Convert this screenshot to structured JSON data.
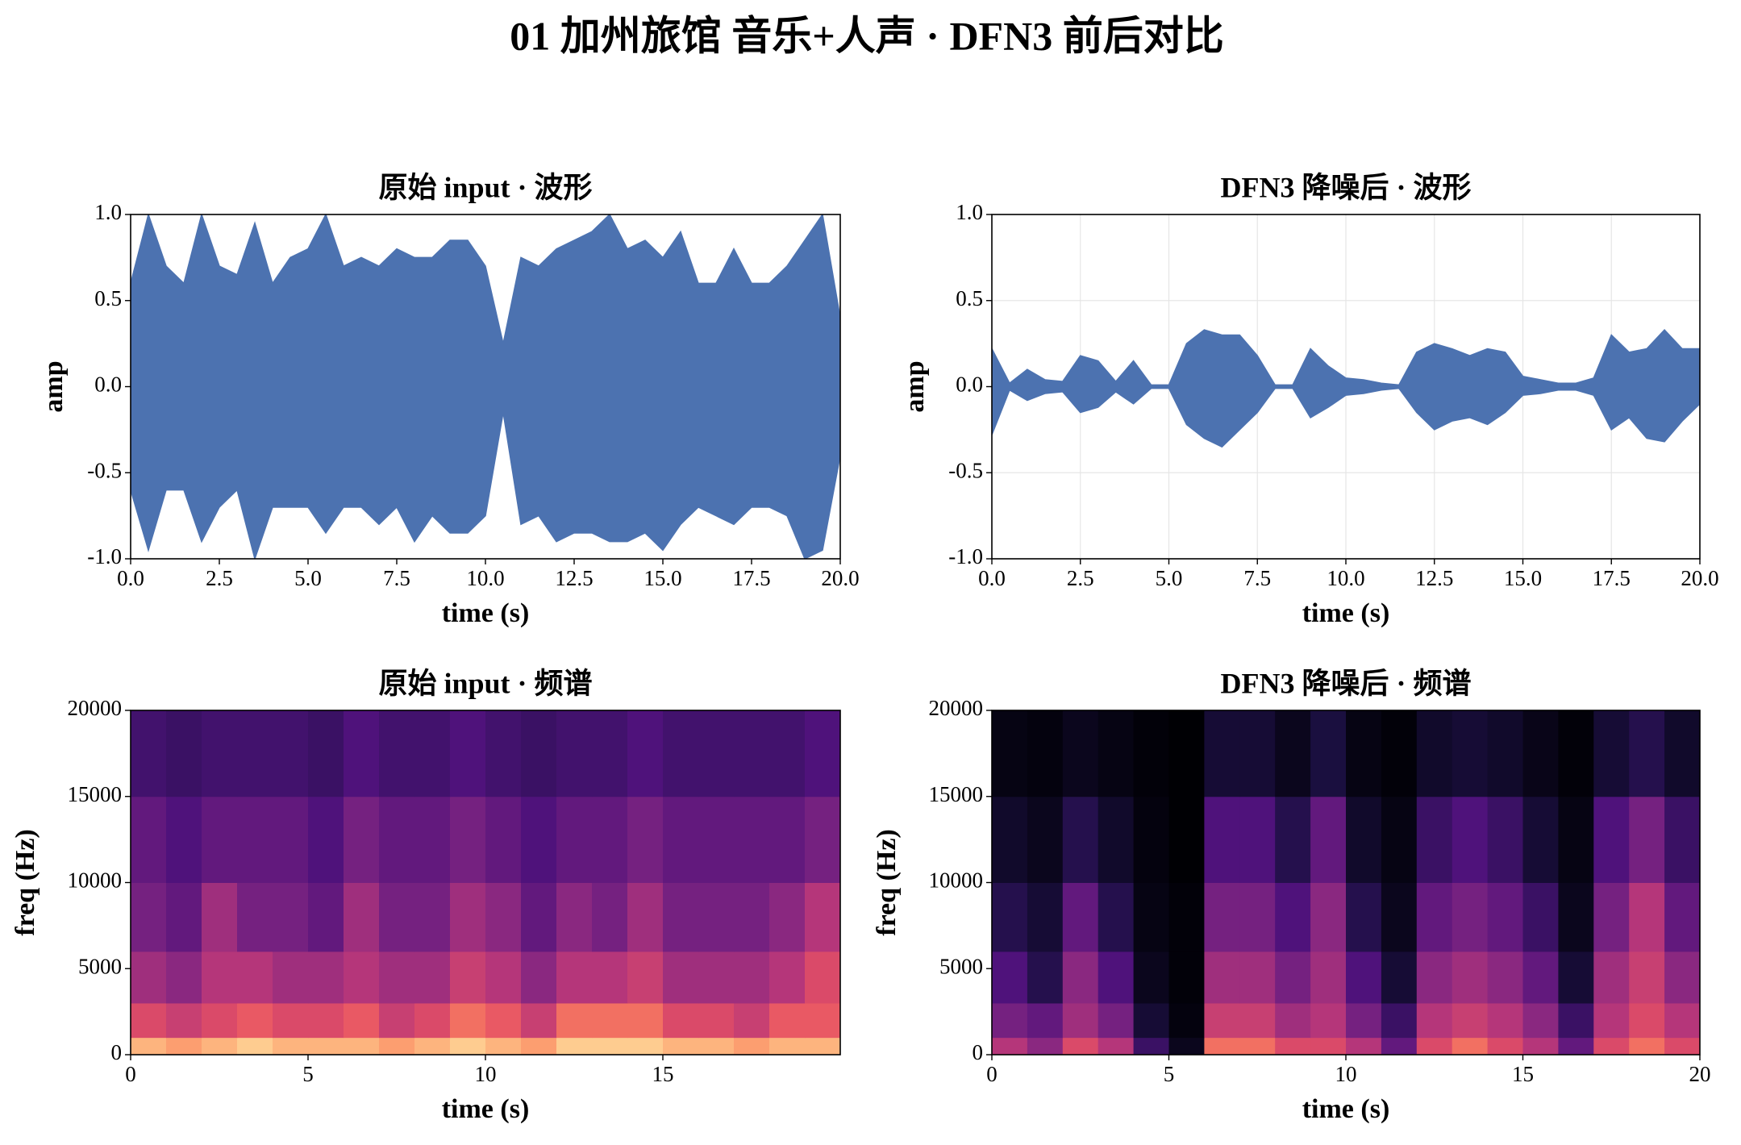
{
  "title": "01 加州旅馆 音乐+人声 · DFN3 前后对比",
  "chart_data": [
    {
      "type": "waveform",
      "title": "原始 input · 波形",
      "xlabel": "time (s)",
      "ylabel": "amp",
      "color": "#4c72b0",
      "grid": false,
      "xlim": [
        0,
        20
      ],
      "ylim": [
        -1,
        1
      ],
      "xticks": [
        {
          "value": 0,
          "label": "0.0"
        },
        2.5,
        {
          "value": 5,
          "label": "5.0"
        },
        7.5,
        {
          "value": 10,
          "label": "10.0"
        },
        12.5,
        {
          "value": 15,
          "label": "15.0"
        },
        17.5,
        {
          "value": 20,
          "label": "20.0"
        }
      ],
      "yticks": [
        {
          "value": -1,
          "label": "-1.0"
        },
        -0.5,
        {
          "value": 0,
          "label": "0.0"
        },
        0.5,
        {
          "value": 1,
          "label": "1.0"
        }
      ],
      "x": [
        0,
        0.5,
        1,
        1.5,
        2,
        2.5,
        3,
        3.5,
        4,
        4.5,
        5,
        5.5,
        6,
        6.5,
        7,
        7.5,
        8,
        8.5,
        9,
        9.5,
        10,
        10.5,
        11,
        11.5,
        12,
        12.5,
        13,
        13.5,
        14,
        14.5,
        15,
        15.5,
        16,
        16.5,
        17,
        17.5,
        18,
        18.5,
        19,
        19.5,
        20
      ],
      "upper": [
        0.6,
        1.0,
        0.7,
        0.6,
        1.0,
        0.7,
        0.65,
        0.95,
        0.6,
        0.75,
        0.8,
        1.0,
        0.7,
        0.75,
        0.7,
        0.8,
        0.75,
        0.75,
        0.85,
        0.85,
        0.7,
        0.25,
        0.75,
        0.7,
        0.8,
        0.85,
        0.9,
        1.0,
        0.8,
        0.85,
        0.75,
        0.9,
        0.6,
        0.6,
        0.8,
        0.6,
        0.6,
        0.7,
        0.85,
        1.0,
        0.4
      ],
      "lower": [
        -0.6,
        -0.95,
        -0.6,
        -0.6,
        -0.9,
        -0.7,
        -0.6,
        -1.0,
        -0.7,
        -0.7,
        -0.7,
        -0.85,
        -0.7,
        -0.7,
        -0.8,
        -0.7,
        -0.9,
        -0.75,
        -0.85,
        -0.85,
        -0.75,
        -0.15,
        -0.8,
        -0.75,
        -0.9,
        -0.85,
        -0.85,
        -0.9,
        -0.9,
        -0.85,
        -0.95,
        -0.8,
        -0.7,
        -0.75,
        -0.8,
        -0.7,
        -0.7,
        -0.75,
        -1.0,
        -0.95,
        -0.4
      ]
    },
    {
      "type": "waveform",
      "title": "DFN3 降噪后 · 波形",
      "xlabel": "time (s)",
      "ylabel": "amp",
      "color": "#4c72b0",
      "grid": true,
      "xlim": [
        0,
        20
      ],
      "ylim": [
        -1,
        1
      ],
      "xticks": [
        {
          "value": 0,
          "label": "0.0"
        },
        2.5,
        {
          "value": 5,
          "label": "5.0"
        },
        7.5,
        {
          "value": 10,
          "label": "10.0"
        },
        12.5,
        {
          "value": 15,
          "label": "15.0"
        },
        17.5,
        {
          "value": 20,
          "label": "20.0"
        }
      ],
      "yticks": [
        {
          "value": -1,
          "label": "-1.0"
        },
        -0.5,
        {
          "value": 0,
          "label": "0.0"
        },
        0.5,
        {
          "value": 1,
          "label": "1.0"
        }
      ],
      "x": [
        0,
        0.5,
        1,
        1.5,
        2,
        2.5,
        3,
        3.5,
        4,
        4.5,
        5,
        5.5,
        6,
        6.5,
        7,
        7.5,
        8,
        8.5,
        9,
        9.5,
        10,
        10.5,
        11,
        11.5,
        12,
        12.5,
        13,
        13.5,
        14,
        14.5,
        15,
        15.5,
        16,
        16.5,
        17,
        17.5,
        18,
        18.5,
        19,
        19.5,
        20
      ],
      "upper": [
        0.22,
        0.02,
        0.1,
        0.04,
        0.03,
        0.18,
        0.15,
        0.03,
        0.15,
        0.01,
        0.01,
        0.25,
        0.33,
        0.3,
        0.3,
        0.18,
        0.01,
        0.01,
        0.22,
        0.12,
        0.05,
        0.04,
        0.02,
        0.01,
        0.2,
        0.25,
        0.22,
        0.18,
        0.22,
        0.2,
        0.06,
        0.04,
        0.02,
        0.02,
        0.05,
        0.3,
        0.2,
        0.22,
        0.33,
        0.22,
        0.22
      ],
      "lower": [
        -0.28,
        -0.02,
        -0.08,
        -0.04,
        -0.03,
        -0.15,
        -0.12,
        -0.03,
        -0.1,
        -0.01,
        -0.01,
        -0.22,
        -0.3,
        -0.35,
        -0.25,
        -0.15,
        -0.01,
        -0.01,
        -0.18,
        -0.12,
        -0.05,
        -0.04,
        -0.02,
        -0.01,
        -0.15,
        -0.25,
        -0.2,
        -0.18,
        -0.22,
        -0.15,
        -0.05,
        -0.04,
        -0.02,
        -0.02,
        -0.05,
        -0.25,
        -0.18,
        -0.3,
        -0.32,
        -0.2,
        -0.1
      ]
    },
    {
      "type": "heatmap",
      "title": "原始 input · 频谱",
      "xlabel": "time (s)",
      "ylabel": "freq (Hz)",
      "colormap": "magma",
      "xlim": [
        0,
        20
      ],
      "ylim": [
        0,
        20000
      ],
      "xticks": [
        0,
        5,
        10,
        15
      ],
      "yticks": [
        0,
        5000,
        10000,
        15000,
        20000
      ],
      "x_bins": [
        0,
        1,
        2,
        3,
        4,
        5,
        6,
        7,
        8,
        9,
        10,
        11,
        12,
        13,
        14,
        15,
        16,
        17,
        18,
        19,
        20
      ],
      "y_bins": [
        0,
        1000,
        3000,
        6000,
        10000,
        15000,
        20000
      ],
      "z": [
        [
          0.85,
          0.8,
          0.85,
          0.9,
          0.85,
          0.85,
          0.85,
          0.8,
          0.85,
          0.9,
          0.85,
          0.8,
          0.9,
          0.9,
          0.9,
          0.85,
          0.85,
          0.8,
          0.85,
          0.85
        ],
        [
          0.6,
          0.55,
          0.6,
          0.65,
          0.6,
          0.6,
          0.65,
          0.55,
          0.6,
          0.7,
          0.65,
          0.55,
          0.7,
          0.7,
          0.7,
          0.6,
          0.6,
          0.55,
          0.65,
          0.65
        ],
        [
          0.45,
          0.4,
          0.5,
          0.5,
          0.45,
          0.45,
          0.5,
          0.45,
          0.45,
          0.55,
          0.5,
          0.4,
          0.5,
          0.5,
          0.55,
          0.45,
          0.45,
          0.45,
          0.5,
          0.6
        ],
        [
          0.35,
          0.3,
          0.45,
          0.35,
          0.35,
          0.3,
          0.45,
          0.35,
          0.35,
          0.45,
          0.4,
          0.3,
          0.4,
          0.35,
          0.45,
          0.35,
          0.35,
          0.35,
          0.4,
          0.5
        ],
        [
          0.3,
          0.25,
          0.3,
          0.3,
          0.3,
          0.25,
          0.35,
          0.3,
          0.3,
          0.35,
          0.3,
          0.25,
          0.3,
          0.3,
          0.35,
          0.3,
          0.3,
          0.3,
          0.3,
          0.35
        ],
        [
          0.22,
          0.2,
          0.22,
          0.22,
          0.22,
          0.2,
          0.25,
          0.22,
          0.22,
          0.25,
          0.22,
          0.2,
          0.22,
          0.22,
          0.25,
          0.22,
          0.22,
          0.22,
          0.22,
          0.25
        ]
      ]
    },
    {
      "type": "heatmap",
      "title": "DFN3 降噪后 · 频谱",
      "xlabel": "time (s)",
      "ylabel": "freq (Hz)",
      "colormap": "magma",
      "xlim": [
        0,
        20
      ],
      "ylim": [
        0,
        20000
      ],
      "xticks": [
        0,
        5,
        10,
        15,
        20
      ],
      "yticks": [
        0,
        5000,
        10000,
        15000,
        20000
      ],
      "x_bins": [
        0,
        1,
        2,
        3,
        4,
        5,
        6,
        7,
        8,
        9,
        10,
        11,
        12,
        13,
        14,
        15,
        16,
        17,
        18,
        19,
        20
      ],
      "y_bins": [
        0,
        1000,
        3000,
        6000,
        10000,
        15000,
        20000
      ],
      "z": [
        [
          0.5,
          0.4,
          0.6,
          0.5,
          0.2,
          0.05,
          0.7,
          0.7,
          0.6,
          0.6,
          0.5,
          0.3,
          0.6,
          0.7,
          0.6,
          0.5,
          0.3,
          0.6,
          0.7,
          0.6
        ],
        [
          0.35,
          0.3,
          0.45,
          0.35,
          0.1,
          0.02,
          0.55,
          0.55,
          0.45,
          0.5,
          0.35,
          0.2,
          0.5,
          0.55,
          0.5,
          0.4,
          0.2,
          0.5,
          0.6,
          0.5
        ],
        [
          0.25,
          0.15,
          0.4,
          0.25,
          0.05,
          0.01,
          0.45,
          0.45,
          0.35,
          0.45,
          0.25,
          0.1,
          0.4,
          0.45,
          0.4,
          0.3,
          0.1,
          0.45,
          0.55,
          0.4
        ],
        [
          0.15,
          0.1,
          0.3,
          0.15,
          0.03,
          0.01,
          0.35,
          0.35,
          0.25,
          0.4,
          0.15,
          0.05,
          0.3,
          0.35,
          0.3,
          0.2,
          0.05,
          0.35,
          0.5,
          0.3
        ],
        [
          0.08,
          0.05,
          0.15,
          0.08,
          0.02,
          0,
          0.25,
          0.25,
          0.15,
          0.3,
          0.08,
          0.03,
          0.2,
          0.25,
          0.2,
          0.1,
          0.03,
          0.25,
          0.35,
          0.2
        ],
        [
          0.03,
          0.02,
          0.05,
          0.03,
          0.01,
          0,
          0.1,
          0.1,
          0.05,
          0.12,
          0.03,
          0.01,
          0.08,
          0.1,
          0.08,
          0.04,
          0.01,
          0.1,
          0.15,
          0.08
        ]
      ]
    }
  ]
}
